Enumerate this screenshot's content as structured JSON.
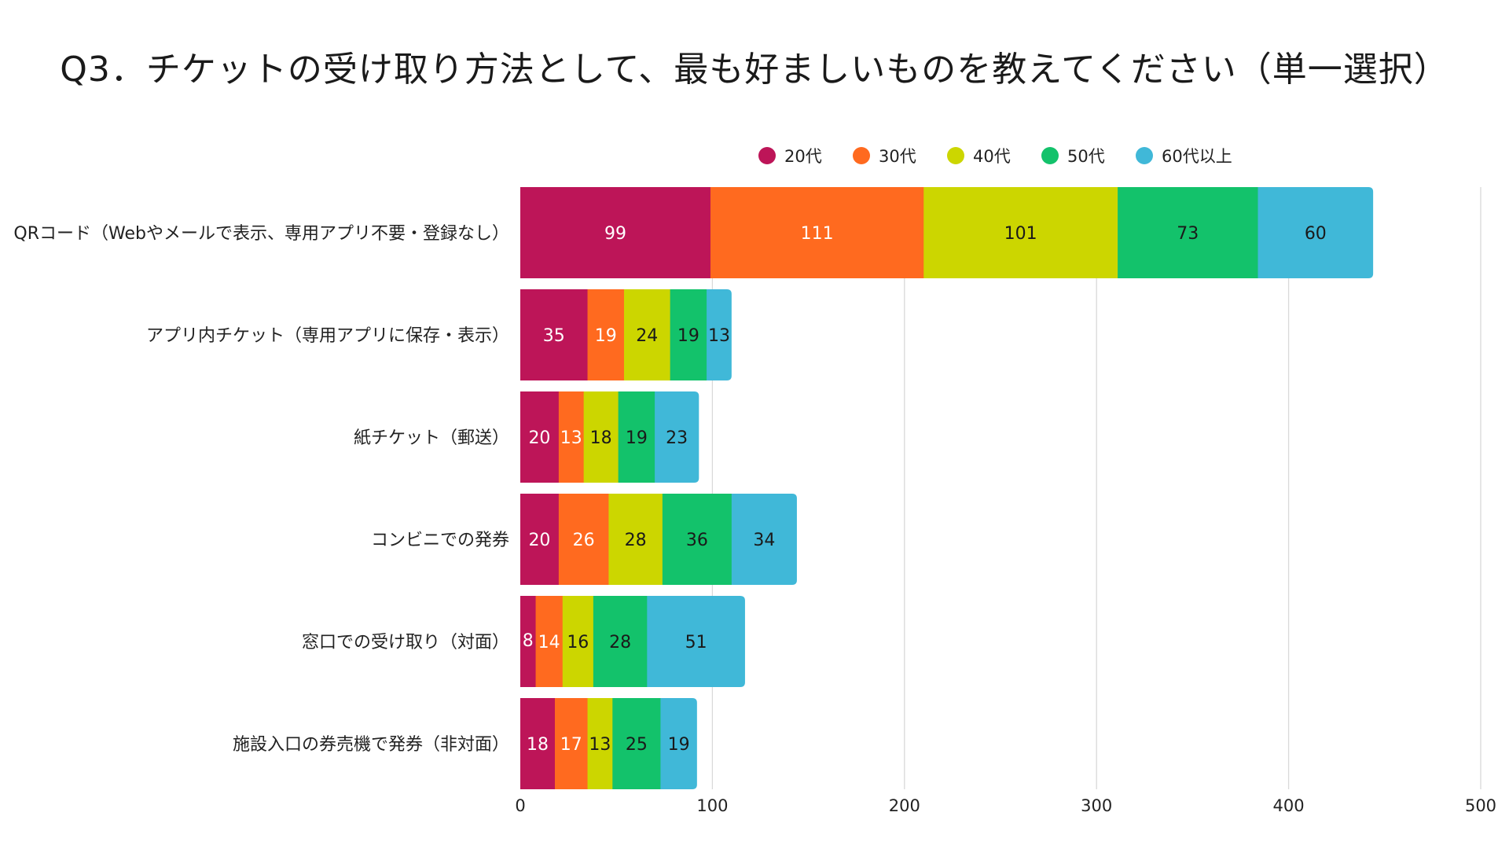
{
  "chart_data": {
    "type": "bar",
    "orientation": "horizontal",
    "stacked": true,
    "title": "Q3．チケットの受け取り方法として、最も好ましいものを教えてください（単一選択）",
    "categories": [
      "QRコード（Webやメールで表示、専用アプリ不要・登録なし）",
      "アプリ内チケット（専用アプリに保存・表示）",
      "紙チケット（郵送）",
      "コンビニでの発券",
      "窓口での受け取り（対面）",
      "施設入口の券売機で発券（非対面）"
    ],
    "series": [
      {
        "name": "20代",
        "color": "#bd1558",
        "label_color": "#ffffff",
        "values": [
          99,
          35,
          20,
          20,
          8,
          18
        ]
      },
      {
        "name": "30代",
        "color": "#ff6a1f",
        "label_color": "#ffffff",
        "values": [
          111,
          19,
          13,
          26,
          14,
          17
        ]
      },
      {
        "name": "40代",
        "color": "#ccd600",
        "label_color": "#1a1a1a",
        "values": [
          101,
          24,
          18,
          28,
          16,
          13
        ]
      },
      {
        "name": "50代",
        "color": "#13c26b",
        "label_color": "#1a1a1a",
        "values": [
          73,
          19,
          19,
          36,
          28,
          25
        ]
      },
      {
        "name": "60代以上",
        "color": "#40b8d8",
        "label_color": "#1a1a1a",
        "values": [
          60,
          13,
          23,
          34,
          51,
          19
        ]
      }
    ],
    "xlim": [
      0,
      500
    ],
    "xticks": [
      0,
      100,
      200,
      300,
      400,
      500
    ],
    "grid": "vertical",
    "legend": "top-right"
  }
}
